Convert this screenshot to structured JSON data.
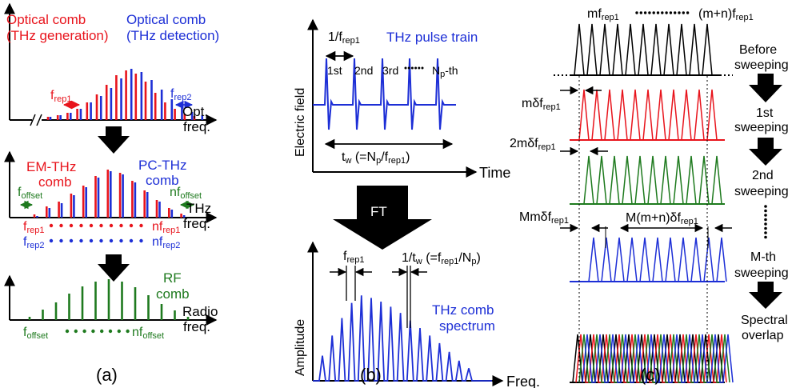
{
  "colors": {
    "red": "#e8141c",
    "blue": "#1d2fd6",
    "green": "#1e7a1e",
    "black": "#000000"
  },
  "panel_a": {
    "label": "(a)",
    "optical": {
      "gen_title_1": "Optical comb",
      "gen_title_2": "(THz generation)",
      "det_title_1": "Optical comb",
      "det_title_2": "(THz detection)",
      "frep1": "f",
      "frep1_sub": "rep1",
      "frep2": "f",
      "frep2_sub": "rep2",
      "axis_1": "Opt.",
      "axis_2": "freq."
    },
    "thz": {
      "em_1": "EM-THz",
      "em_2": "comb",
      "pc_1": "PC-THz",
      "pc_2": "comb",
      "foffset": "f",
      "foffset_sub": "offset",
      "nfoffset": "nf",
      "nfoffset_sub": "offset",
      "axis_1": "THz",
      "axis_2": "freq.",
      "row1_left": "f",
      "row1_left_sub": "rep1",
      "row1_right": "nf",
      "row1_right_sub": "rep1",
      "row2_left": "f",
      "row2_left_sub": "rep2",
      "row2_right": "nf",
      "row2_right_sub": "rep2"
    },
    "rf": {
      "title_1": "RF",
      "title_2": "comb",
      "axis_1": "Radio",
      "axis_2": "freq.",
      "left": "f",
      "left_sub": "offset",
      "right": "nf",
      "right_sub": "offset"
    }
  },
  "panel_b": {
    "label": "(b)",
    "period": "1/f",
    "period_sub": "rep1",
    "title": "THz pulse train",
    "pulses": [
      "1st",
      "2nd",
      "3rd"
    ],
    "np_pulse": "N",
    "np_pulse_sub": "p",
    "np_pulse_suffix": "-th",
    "ylabel": "Electric field",
    "tw": "t",
    "tw_sub": "w",
    "tw_rest": " (=N",
    "tw_rest_sub": "p",
    "tw_rest2": "/f",
    "tw_rest2_sub": "rep1",
    "tw_close": ")",
    "time_label": "Time",
    "ft": "FT",
    "frep1": "f",
    "frep1_sub": "rep1",
    "invtw": "1/t",
    "invtw_sub": "w",
    "invtw_rest": " (=f",
    "invtw_rest_sub": "rep1",
    "invtw_rest2": "/N",
    "invtw_rest2_sub": "p",
    "invtw_close": ")",
    "amp_label": "Amplitude",
    "spec_1": "THz comb",
    "spec_2": "spectrum",
    "freq_label": "Freq."
  },
  "panel_c": {
    "label": "(c)",
    "top_left": "mf",
    "top_left_sub": "rep1",
    "top_right": "(m+n)f",
    "top_right_sub": "rep1",
    "before_1": "Before",
    "before_2": "sweeping",
    "s1_shift": "mδf",
    "s1_shift_sub": "rep1",
    "s1_1": "1st",
    "s1_2": "sweeping",
    "s2_shift": "2mδf",
    "s2_shift_sub": "rep1",
    "s2_1": "2nd",
    "s2_2": "sweeping",
    "sm_shift": "Mmδf",
    "sm_shift_sub": "rep1",
    "sm_span": "M(m+n)δf",
    "sm_span_sub": "rep1",
    "sm_1": "M-th",
    "sm_2": "sweeping",
    "overlap_1": "Spectral",
    "overlap_2": "overlap"
  }
}
